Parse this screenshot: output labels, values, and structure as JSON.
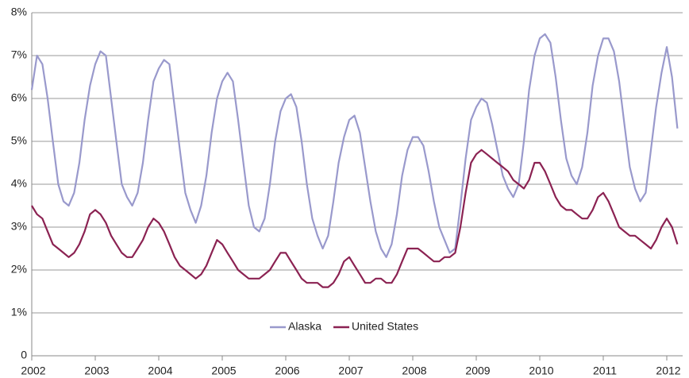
{
  "chart_data": {
    "type": "line",
    "x": [
      2002,
      2002.083,
      2002.167,
      2002.25,
      2002.333,
      2002.417,
      2002.5,
      2002.583,
      2002.667,
      2002.75,
      2002.833,
      2002.917,
      2003,
      2003.083,
      2003.167,
      2003.25,
      2003.333,
      2003.417,
      2003.5,
      2003.583,
      2003.667,
      2003.75,
      2003.833,
      2003.917,
      2004,
      2004.083,
      2004.167,
      2004.25,
      2004.333,
      2004.417,
      2004.5,
      2004.583,
      2004.667,
      2004.75,
      2004.833,
      2004.917,
      2005,
      2005.083,
      2005.167,
      2005.25,
      2005.333,
      2005.417,
      2005.5,
      2005.583,
      2005.667,
      2005.75,
      2005.833,
      2005.917,
      2006,
      2006.083,
      2006.167,
      2006.25,
      2006.333,
      2006.417,
      2006.5,
      2006.583,
      2006.667,
      2006.75,
      2006.833,
      2006.917,
      2007,
      2007.083,
      2007.167,
      2007.25,
      2007.333,
      2007.417,
      2007.5,
      2007.583,
      2007.667,
      2007.75,
      2007.833,
      2007.917,
      2008,
      2008.083,
      2008.167,
      2008.25,
      2008.333,
      2008.417,
      2008.5,
      2008.583,
      2008.667,
      2008.75,
      2008.833,
      2008.917,
      2009,
      2009.083,
      2009.167,
      2009.25,
      2009.333,
      2009.417,
      2009.5,
      2009.583,
      2009.667,
      2009.75,
      2009.833,
      2009.917,
      2010,
      2010.083,
      2010.167,
      2010.25,
      2010.333,
      2010.417,
      2010.5,
      2010.583,
      2010.667,
      2010.75,
      2010.833,
      2010.917,
      2011,
      2011.083,
      2011.167,
      2011.25,
      2011.333,
      2011.417,
      2011.5,
      2011.583,
      2011.667,
      2011.75,
      2011.833,
      2011.917,
      2012,
      2012.083,
      2012.167
    ],
    "series": [
      {
        "name": "Alaska",
        "color": "#9999cc",
        "values": [
          6.2,
          7.0,
          6.8,
          6.0,
          5.0,
          4.0,
          3.6,
          3.5,
          3.8,
          4.5,
          5.5,
          6.3,
          6.8,
          7.1,
          7.0,
          6.0,
          5.0,
          4.0,
          3.7,
          3.5,
          3.8,
          4.5,
          5.5,
          6.4,
          6.7,
          6.9,
          6.8,
          5.8,
          4.8,
          3.8,
          3.4,
          3.1,
          3.5,
          4.2,
          5.2,
          6.0,
          6.4,
          6.6,
          6.4,
          5.5,
          4.5,
          3.5,
          3.0,
          2.9,
          3.2,
          4.0,
          5.0,
          5.7,
          6.0,
          6.1,
          5.8,
          5.0,
          4.0,
          3.2,
          2.8,
          2.5,
          2.8,
          3.6,
          4.5,
          5.1,
          5.5,
          5.6,
          5.2,
          4.4,
          3.6,
          2.9,
          2.5,
          2.3,
          2.6,
          3.3,
          4.2,
          4.8,
          5.1,
          5.1,
          4.9,
          4.3,
          3.6,
          3.0,
          2.7,
          2.4,
          2.5,
          3.5,
          4.6,
          5.5,
          5.8,
          6.0,
          5.9,
          5.4,
          4.8,
          4.2,
          3.9,
          3.7,
          4.0,
          5.0,
          6.2,
          7.0,
          7.4,
          7.5,
          7.3,
          6.5,
          5.5,
          4.6,
          4.2,
          4.0,
          4.4,
          5.2,
          6.3,
          7.0,
          7.4,
          7.4,
          7.1,
          6.4,
          5.4,
          4.4,
          3.9,
          3.6,
          3.8,
          4.8,
          5.8,
          6.6,
          7.2,
          6.5,
          5.3
        ]
      },
      {
        "name": "United States",
        "color": "#8b2252",
        "values": [
          3.5,
          3.3,
          3.2,
          2.9,
          2.6,
          2.5,
          2.4,
          2.3,
          2.4,
          2.6,
          2.9,
          3.3,
          3.4,
          3.3,
          3.1,
          2.8,
          2.6,
          2.4,
          2.3,
          2.3,
          2.5,
          2.7,
          3.0,
          3.2,
          3.1,
          2.9,
          2.6,
          2.3,
          2.1,
          2.0,
          1.9,
          1.8,
          1.9,
          2.1,
          2.4,
          2.7,
          2.6,
          2.4,
          2.2,
          2.0,
          1.9,
          1.8,
          1.8,
          1.8,
          1.9,
          2.0,
          2.2,
          2.4,
          2.4,
          2.2,
          2.0,
          1.8,
          1.7,
          1.7,
          1.7,
          1.6,
          1.6,
          1.7,
          1.9,
          2.2,
          2.3,
          2.1,
          1.9,
          1.7,
          1.7,
          1.8,
          1.8,
          1.7,
          1.7,
          1.9,
          2.2,
          2.5,
          2.5,
          2.5,
          2.4,
          2.3,
          2.2,
          2.2,
          2.3,
          2.3,
          2.4,
          3.0,
          3.8,
          4.5,
          4.7,
          4.8,
          4.7,
          4.6,
          4.5,
          4.4,
          4.3,
          4.1,
          4.0,
          3.9,
          4.1,
          4.5,
          4.5,
          4.3,
          4.0,
          3.7,
          3.5,
          3.4,
          3.4,
          3.3,
          3.2,
          3.2,
          3.4,
          3.7,
          3.8,
          3.6,
          3.3,
          3.0,
          2.9,
          2.8,
          2.8,
          2.7,
          2.6,
          2.5,
          2.7,
          3.0,
          3.2,
          3.0,
          2.6
        ]
      }
    ],
    "xlim": [
      2002,
      2012.25
    ],
    "xticks": [
      2002,
      2003,
      2004,
      2005,
      2006,
      2007,
      2008,
      2009,
      2010,
      2011,
      2012
    ],
    "ylim": [
      0,
      8
    ],
    "yticks": [
      0,
      {
        "value": 1,
        "label": "1%"
      },
      {
        "value": 2,
        "label": "2%"
      },
      {
        "value": 3,
        "label": "3%"
      },
      {
        "value": 4,
        "label": "4%"
      },
      {
        "value": 5,
        "label": "5%"
      },
      {
        "value": 6,
        "label": "6%"
      },
      {
        "value": 7,
        "label": "7%"
      },
      {
        "value": 8,
        "label": "8%"
      }
    ],
    "grid": true,
    "legend": "bottom"
  }
}
